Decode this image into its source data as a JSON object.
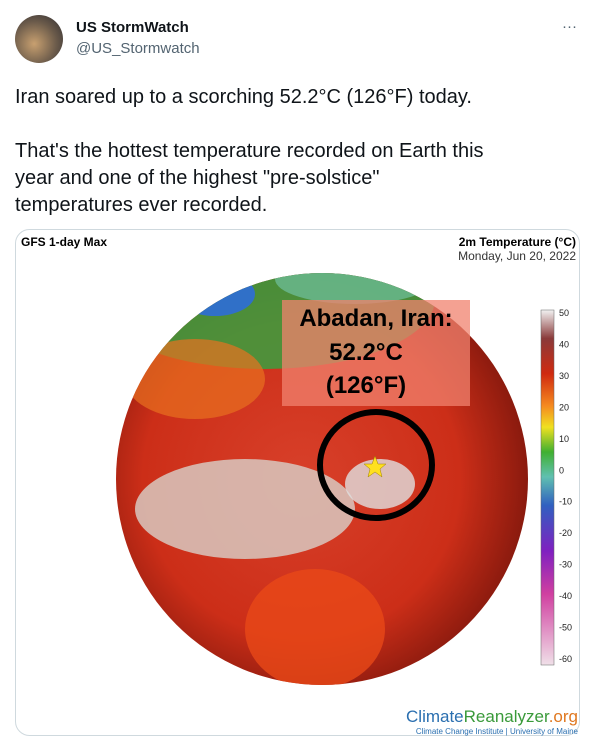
{
  "header": {
    "name": "US StormWatch",
    "handle": "@US_Stormwatch",
    "more": "···"
  },
  "tweet": {
    "paragraphs": [
      [
        "Iran soared up to a scorching 52.2°C (126°F) today."
      ],
      [
        "That's the hottest temperature recorded on Earth this",
        "year and one of the highest \"pre-solstice\"",
        "temperatures ever recorded."
      ]
    ]
  },
  "image": {
    "model": "GFS 1-day Max",
    "variable": "2m Temperature (°C)",
    "date": "Monday, Jun 20, 2022",
    "callout": [
      "Abadan, Iran:",
      "52.2°C",
      "(126°F)"
    ],
    "colorbar": [
      50,
      40,
      30,
      20,
      10,
      0,
      -10,
      -20,
      -30,
      -40,
      -50,
      -60
    ],
    "brand": [
      "Climate",
      "Reanalyzer",
      ".org"
    ],
    "institute": "Climate Change Institute | University of Maine"
  }
}
